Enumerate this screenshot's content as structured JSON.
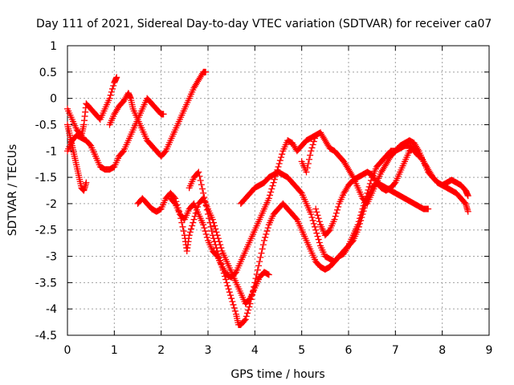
{
  "chart_data": {
    "type": "scatter",
    "title": "Day 111 of 2021, Sidereal Day-to-day VTEC variation (SDTVAR) for receiver ca07",
    "xlabel": "GPS time / hours",
    "ylabel": "SDTVAR / TECUs",
    "xlim": [
      0,
      9
    ],
    "ylim": [
      -4.5,
      1
    ],
    "xticks": [
      0,
      1,
      2,
      3,
      4,
      5,
      6,
      7,
      8,
      9
    ],
    "xtick_labels": [
      "0",
      "1",
      "2",
      "3",
      "4",
      "5",
      "6",
      "7",
      "8",
      "9"
    ],
    "yticks": [
      1,
      0.5,
      0,
      -0.5,
      -1,
      -1.5,
      -2,
      -2.5,
      -3,
      -3.5,
      -4,
      -4.5
    ],
    "ytick_labels": [
      "1",
      "0.5",
      "0",
      "-0.5",
      "-1",
      "-1.5",
      "-2",
      "-2.5",
      "-3",
      "-3.5",
      "-4",
      "-4.5"
    ],
    "grid": true,
    "marker": "+",
    "color": "#ff0000",
    "series": [
      {
        "x": [
          0.0,
          0.1,
          0.2,
          0.3,
          0.35,
          0.4,
          0.5,
          0.6,
          0.7,
          0.8,
          0.9,
          1.0,
          1.05
        ],
        "y": [
          -0.2,
          -0.4,
          -0.6,
          -0.7,
          -0.5,
          -0.1,
          -0.2,
          -0.3,
          -0.4,
          -0.2,
          0.0,
          0.3,
          0.4
        ]
      },
      {
        "x": [
          0.0,
          0.05,
          0.1,
          0.15,
          0.2,
          0.25,
          0.3,
          0.35,
          0.4
        ],
        "y": [
          -0.5,
          -0.7,
          -0.9,
          -1.1,
          -1.3,
          -1.5,
          -1.7,
          -1.75,
          -1.6
        ]
      },
      {
        "x": [
          0.0,
          0.1,
          0.2,
          0.3,
          0.4,
          0.5,
          0.6,
          0.7,
          0.8,
          0.9,
          1.0,
          1.1,
          1.2,
          1.3,
          1.4,
          1.5,
          1.6,
          1.7,
          1.8,
          1.9,
          2.0,
          2.1,
          2.2,
          2.3,
          2.4,
          2.5,
          2.6,
          2.7,
          2.8,
          2.9,
          2.95
        ],
        "y": [
          -1.0,
          -0.8,
          -0.7,
          -0.75,
          -0.8,
          -0.9,
          -1.1,
          -1.3,
          -1.35,
          -1.35,
          -1.3,
          -1.1,
          -1.0,
          -0.8,
          -0.6,
          -0.4,
          -0.6,
          -0.8,
          -0.9,
          -1.0,
          -1.1,
          -1.0,
          -0.8,
          -0.6,
          -0.4,
          -0.2,
          0.0,
          0.2,
          0.35,
          0.5,
          0.5
        ]
      },
      {
        "x": [
          0.9,
          1.0,
          1.1,
          1.2,
          1.3,
          1.35,
          1.4,
          1.5,
          1.6,
          1.7,
          1.8,
          1.9,
          2.0,
          2.05
        ],
        "y": [
          -0.5,
          -0.3,
          -0.15,
          -0.05,
          0.1,
          0.0,
          -0.2,
          -0.4,
          -0.2,
          0.0,
          -0.1,
          -0.2,
          -0.3,
          -0.3
        ]
      },
      {
        "x": [
          1.5,
          1.6,
          1.7,
          1.8,
          1.9,
          2.0,
          2.1,
          2.2,
          2.3,
          2.4,
          2.5,
          2.55,
          2.6,
          2.7,
          2.8,
          2.9,
          3.0,
          3.1,
          3.2,
          3.3,
          3.4,
          3.5,
          3.6,
          3.7,
          3.8,
          3.9,
          4.0,
          4.1,
          4.2,
          4.3
        ],
        "y": [
          -2.0,
          -1.9,
          -2.0,
          -2.1,
          -2.15,
          -2.1,
          -1.9,
          -1.8,
          -1.9,
          -2.2,
          -2.6,
          -2.9,
          -2.6,
          -2.3,
          -2.0,
          -1.9,
          -2.1,
          -2.3,
          -2.6,
          -2.9,
          -3.1,
          -3.3,
          -3.5,
          -3.7,
          -3.9,
          -3.8,
          -3.6,
          -3.4,
          -3.3,
          -3.35
        ]
      },
      {
        "x": [
          2.2,
          2.3,
          2.4,
          2.5,
          2.6,
          2.7,
          2.8,
          2.9,
          3.0,
          3.1,
          3.2,
          3.3,
          3.4,
          3.5,
          3.6,
          3.7,
          3.8,
          3.9,
          4.0,
          4.1,
          4.2,
          4.3,
          4.4,
          4.5,
          4.6,
          4.7,
          4.8,
          4.9,
          5.0,
          5.1,
          5.2,
          5.3
        ],
        "y": [
          -1.9,
          -2.0,
          -2.2,
          -2.3,
          -2.1,
          -2.0,
          -2.2,
          -2.4,
          -2.7,
          -2.9,
          -3.0,
          -3.2,
          -3.35,
          -3.4,
          -3.3,
          -3.1,
          -2.9,
          -2.7,
          -2.5,
          -2.3,
          -2.1,
          -1.9,
          -1.6,
          -1.3,
          -1.0,
          -0.8,
          -0.85,
          -1.0,
          -0.9,
          -0.8,
          -0.75,
          -0.7
        ]
      },
      {
        "x": [
          2.6,
          2.7,
          2.8,
          2.9,
          3.0,
          3.1,
          3.2,
          3.3,
          3.4,
          3.5,
          3.6,
          3.65,
          3.7,
          3.8,
          3.9,
          4.0,
          4.1,
          4.2,
          4.3,
          4.4,
          4.5,
          4.6,
          4.7,
          4.8,
          4.9,
          5.0,
          5.1,
          5.2,
          5.3,
          5.4,
          5.5,
          5.6,
          5.7,
          5.8,
          5.9,
          6.0,
          6.1,
          6.2,
          6.3,
          6.4,
          6.5,
          6.6,
          6.7,
          6.8,
          6.9,
          7.0,
          7.1,
          7.2,
          7.3,
          7.4,
          7.5
        ],
        "y": [
          -1.7,
          -1.5,
          -1.4,
          -1.8,
          -2.2,
          -2.6,
          -2.9,
          -3.2,
          -3.5,
          -3.8,
          -4.1,
          -4.3,
          -4.3,
          -4.2,
          -3.9,
          -3.5,
          -3.1,
          -2.7,
          -2.4,
          -2.2,
          -2.1,
          -2.0,
          -2.1,
          -2.2,
          -2.3,
          -2.5,
          -2.7,
          -2.9,
          -3.1,
          -3.2,
          -3.25,
          -3.2,
          -3.1,
          -3.0,
          -2.9,
          -2.8,
          -2.6,
          -2.4,
          -2.1,
          -1.8,
          -1.5,
          -1.3,
          -1.2,
          -1.1,
          -1.0,
          -1.0,
          -0.95,
          -0.9,
          -0.9,
          -1.0,
          -1.1
        ]
      },
      {
        "x": [
          3.7,
          3.8,
          3.9,
          4.0,
          4.1,
          4.2,
          4.3,
          4.4,
          4.5,
          4.6,
          4.7,
          4.8,
          4.9,
          5.0,
          5.1,
          5.2,
          5.3,
          5.4,
          5.5,
          5.6,
          5.7,
          5.8,
          5.9,
          6.0,
          6.1,
          6.2,
          6.3,
          6.4,
          6.5,
          6.6,
          6.7,
          6.8,
          6.9,
          7.0,
          7.1,
          7.2,
          7.3,
          7.4,
          7.5,
          7.6,
          7.7
        ],
        "y": [
          -2.0,
          -1.9,
          -1.8,
          -1.7,
          -1.65,
          -1.6,
          -1.5,
          -1.45,
          -1.4,
          -1.45,
          -1.5,
          -1.6,
          -1.7,
          -1.8,
          -2.0,
          -2.2,
          -2.5,
          -2.8,
          -3.0,
          -3.05,
          -3.1,
          -3.0,
          -2.95,
          -2.8,
          -2.7,
          -2.5,
          -2.2,
          -1.9,
          -1.7,
          -1.6,
          -1.65,
          -1.7,
          -1.75,
          -1.8,
          -1.85,
          -1.9,
          -1.95,
          -2.0,
          -2.05,
          -2.1,
          -2.1
        ]
      },
      {
        "x": [
          5.0,
          5.1,
          5.2,
          5.3,
          5.4,
          5.5,
          5.6,
          5.7,
          5.8,
          5.9,
          6.0,
          6.1,
          6.2,
          6.3,
          6.4,
          6.5,
          6.6,
          6.7,
          6.8,
          6.9,
          7.0,
          7.1,
          7.2,
          7.3,
          7.4,
          7.5,
          7.6,
          7.7,
          7.8,
          7.9,
          8.0,
          8.1,
          8.2,
          8.3,
          8.4,
          8.5,
          8.55
        ],
        "y": [
          -1.2,
          -1.4,
          -1.0,
          -0.7,
          -0.65,
          -0.8,
          -0.95,
          -1.0,
          -1.1,
          -1.2,
          -1.35,
          -1.5,
          -1.7,
          -1.9,
          -2.0,
          -1.8,
          -1.6,
          -1.4,
          -1.25,
          -1.1,
          -1.0,
          -0.9,
          -0.85,
          -0.8,
          -0.85,
          -1.0,
          -1.2,
          -1.4,
          -1.5,
          -1.6,
          -1.65,
          -1.7,
          -1.75,
          -1.8,
          -1.9,
          -2.0,
          -2.15
        ]
      },
      {
        "x": [
          5.3,
          5.4,
          5.5,
          5.6,
          5.7,
          5.8,
          5.9,
          6.0,
          6.1,
          6.2,
          6.3,
          6.4,
          6.5,
          6.6,
          6.7,
          6.8,
          6.9,
          7.0,
          7.1,
          7.2,
          7.3,
          7.4,
          7.5,
          7.6,
          7.7,
          7.8,
          7.9,
          8.0,
          8.1,
          8.2,
          8.3,
          8.4,
          8.5,
          8.55
        ],
        "y": [
          -2.1,
          -2.4,
          -2.6,
          -2.5,
          -2.3,
          -2.0,
          -1.8,
          -1.65,
          -1.55,
          -1.5,
          -1.45,
          -1.4,
          -1.45,
          -1.6,
          -1.7,
          -1.75,
          -1.7,
          -1.6,
          -1.4,
          -1.2,
          -1.0,
          -0.95,
          -1.05,
          -1.2,
          -1.35,
          -1.5,
          -1.6,
          -1.65,
          -1.6,
          -1.55,
          -1.6,
          -1.65,
          -1.75,
          -1.85
        ]
      }
    ]
  }
}
